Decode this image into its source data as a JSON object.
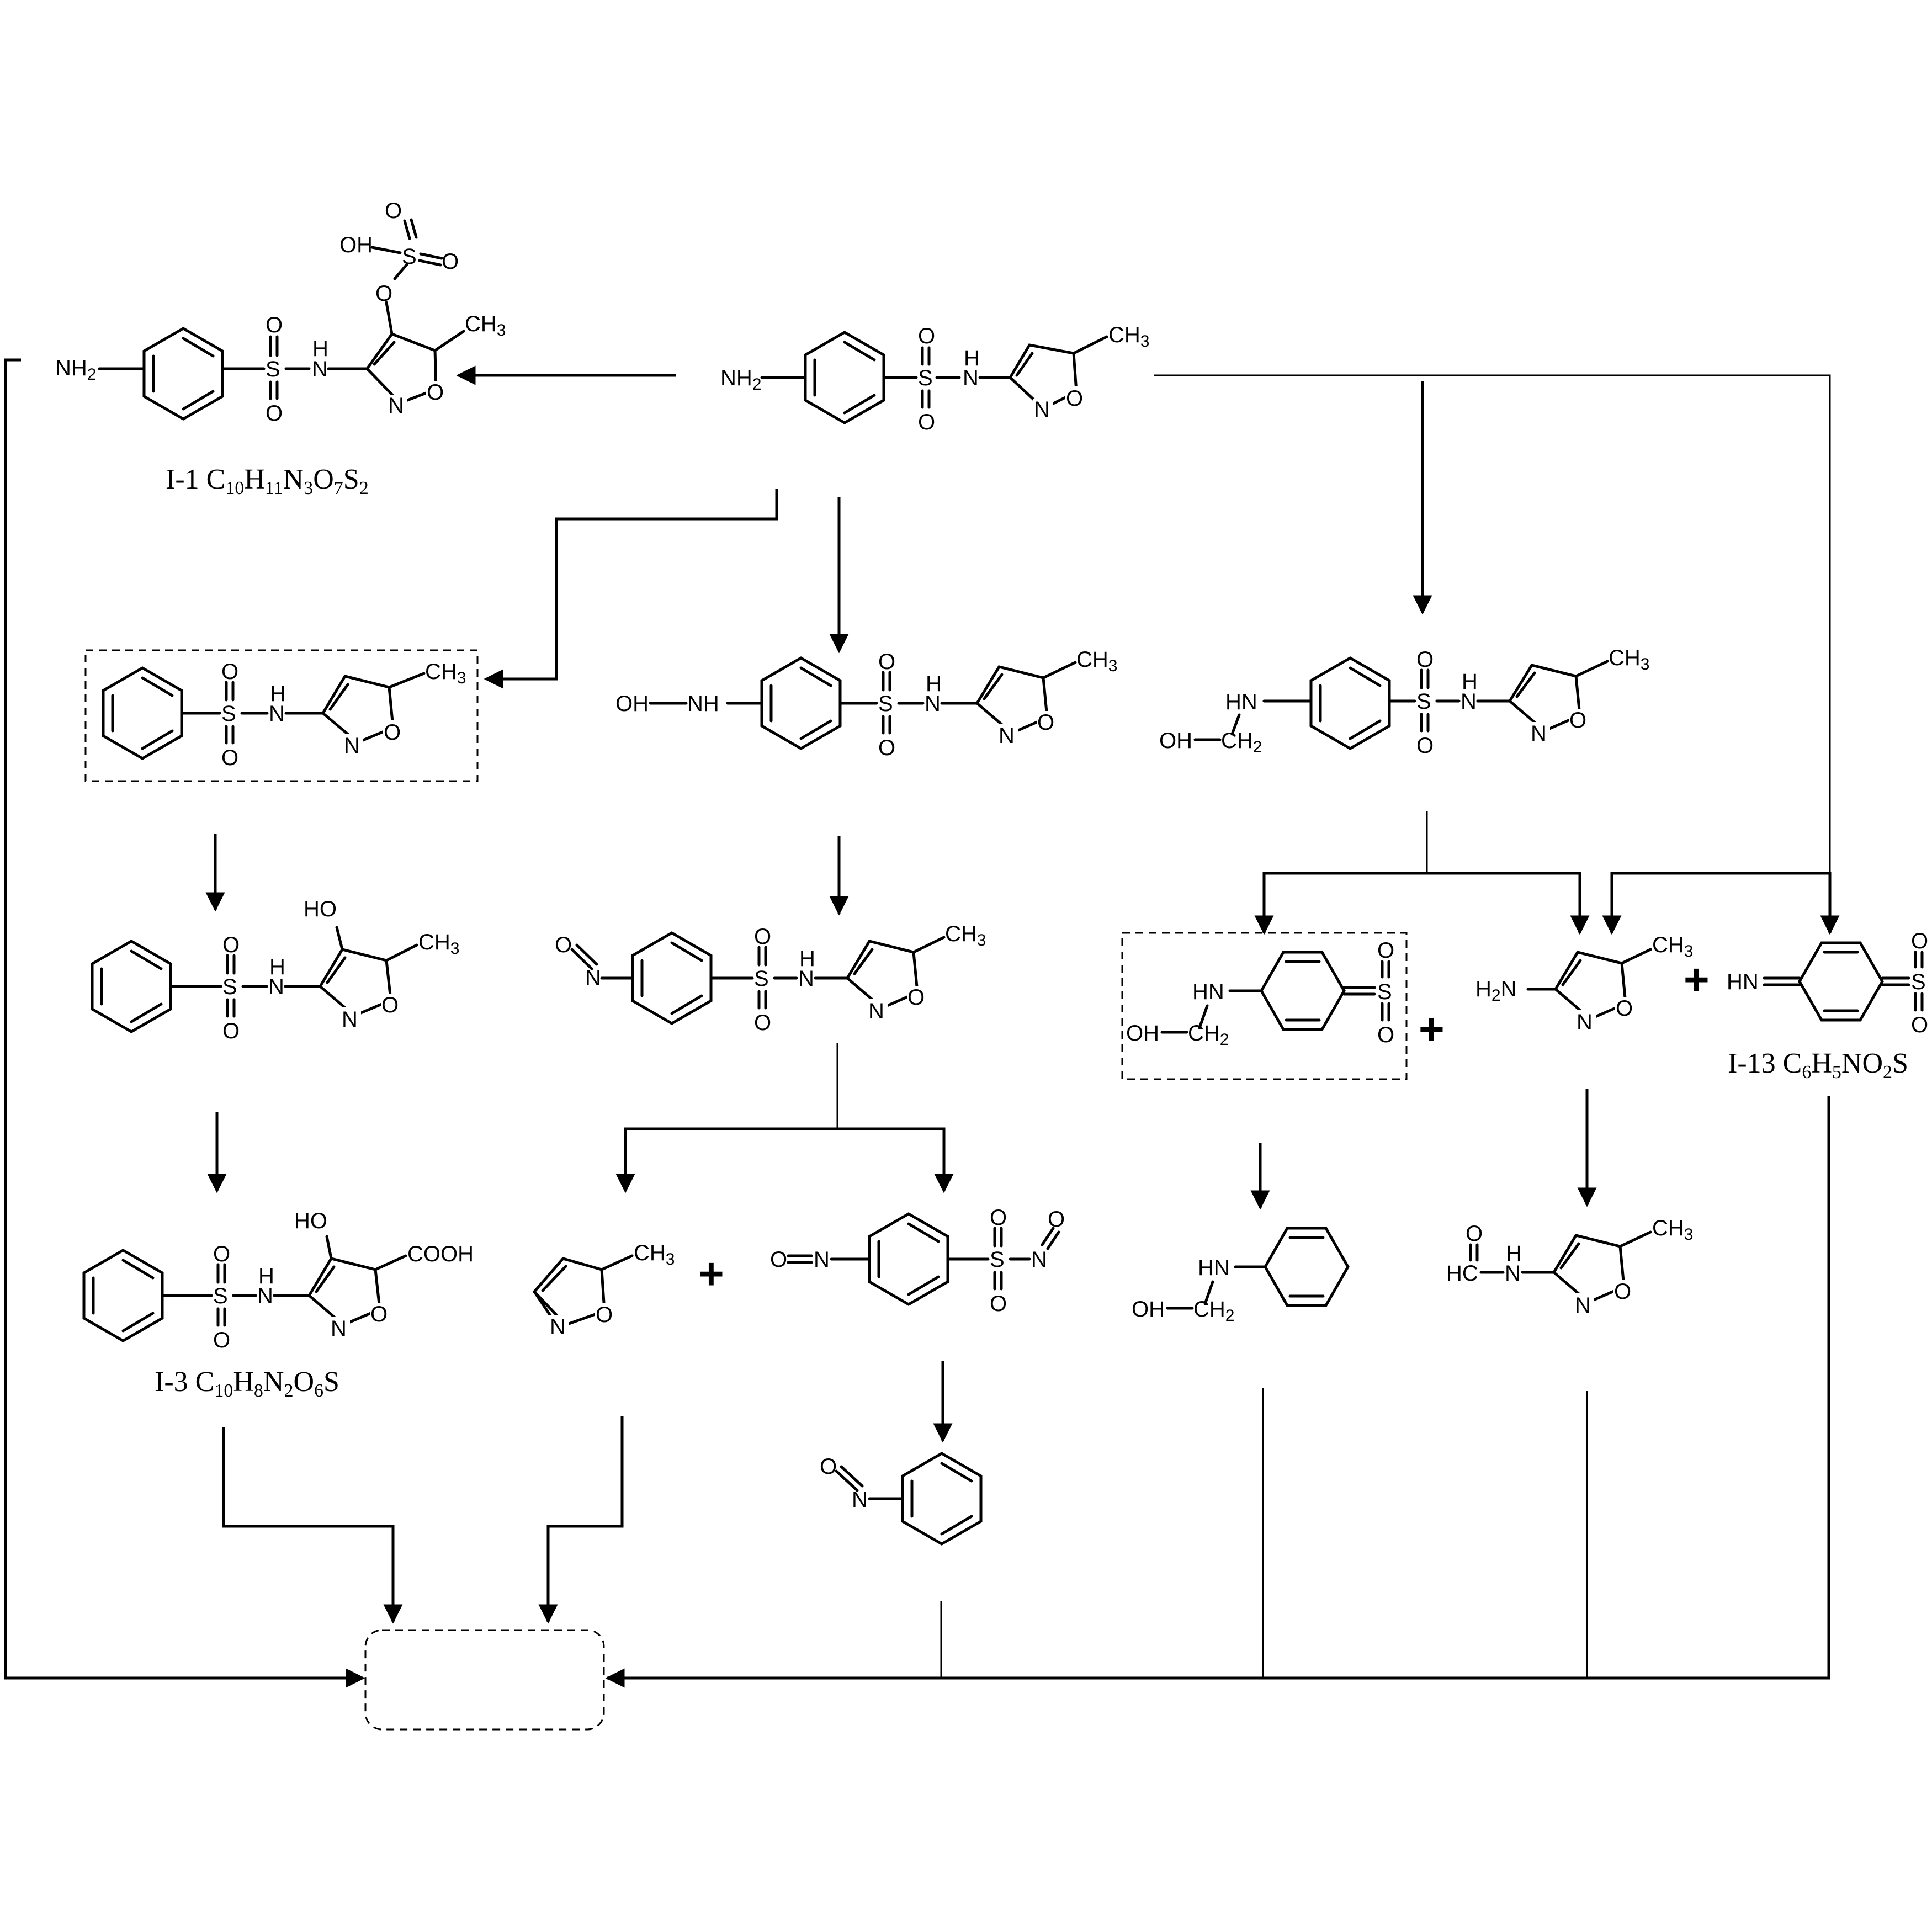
{
  "labels": {
    "nh2": "NH",
    "two": "2",
    "h": "H",
    "n": "N",
    "o": "O",
    "s": "S",
    "hn": "HN",
    "nh": "NH",
    "oh": "OH",
    "ho": "HO",
    "ch": "CH",
    "three": "3",
    "ch2": "CH",
    "cooh": "COOH",
    "hc": "HC",
    "h2n": "H",
    "plus": "+"
  },
  "captions": {
    "i1": {
      "name": "I-1 ",
      "f": [
        "C",
        "10",
        "H",
        "11",
        "N",
        "3",
        "O",
        "7",
        "S",
        "2"
      ]
    },
    "i3": {
      "name": "I-3 ",
      "f": [
        "C",
        "10",
        "H",
        "8",
        "N",
        "2",
        "O",
        "6",
        "S",
        ""
      ]
    },
    "i13": {
      "name": "I-13 ",
      "f": [
        "C",
        "6",
        "H",
        "5",
        "NO",
        "2",
        "S",
        ""
      ]
    }
  }
}
